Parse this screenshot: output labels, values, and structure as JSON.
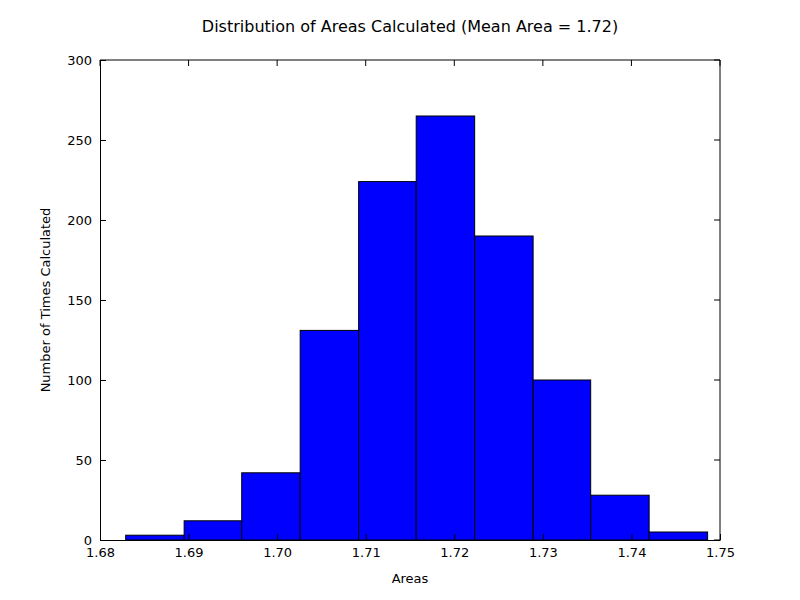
{
  "chart_data": {
    "type": "histogram",
    "title": "Distribution of Areas Calculated (Mean Area = 1.72)",
    "x_label": "Areas",
    "y_label": "Number of Times Calculated",
    "bins": [
      1.6829,
      1.6895,
      1.696,
      1.7026,
      1.7092,
      1.7157,
      1.7223,
      1.7289,
      1.7354,
      1.742,
      1.7486
    ],
    "values": [
      3,
      12,
      42,
      131,
      224,
      265,
      190,
      100,
      28,
      5
    ],
    "color": "#0000ff",
    "xlim": [
      1.68,
      1.75
    ],
    "xticks": [
      1.68,
      1.69,
      {
        "value": 1.7,
        "label": "1.70"
      },
      1.71,
      1.72,
      1.73,
      1.74,
      1.75
    ],
    "ylim": [
      0,
      300
    ],
    "yticks": [
      0,
      50,
      100,
      150,
      200,
      250,
      300
    ]
  }
}
